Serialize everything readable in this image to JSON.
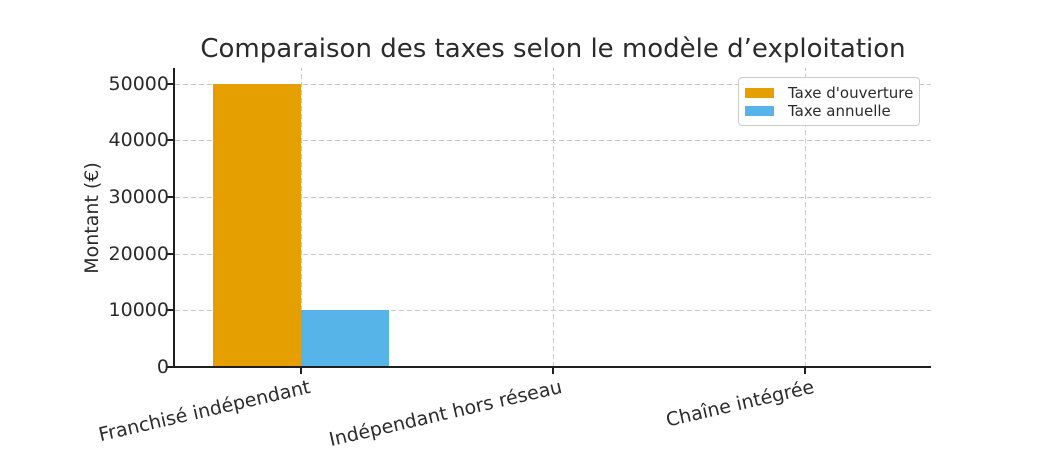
{
  "chart_data": {
    "type": "bar",
    "title": "Comparaison des taxes selon le modèle d’exploitation",
    "categories": [
      "Franchisé indépendant",
      "Indépendant hors réseau",
      "Chaîne intégrée"
    ],
    "series": [
      {
        "name": "Taxe d'ouverture",
        "color": "#E69F00",
        "values": [
          50000,
          0,
          0
        ]
      },
      {
        "name": "Taxe annuelle",
        "color": "#56B4E9",
        "values": [
          10000,
          0,
          0
        ]
      }
    ],
    "xlabel": "",
    "ylabel": "Montant (€)",
    "yticks": [
      0,
      10000,
      20000,
      30000,
      40000,
      50000
    ],
    "ylim": [
      0,
      52800
    ],
    "grid": "dashed",
    "grid_color": "#c9c9c9",
    "axis_color": "#1f1f1f",
    "text_color": "#2b2b2b",
    "legend_position": "upper right",
    "legend_visible": true
  }
}
